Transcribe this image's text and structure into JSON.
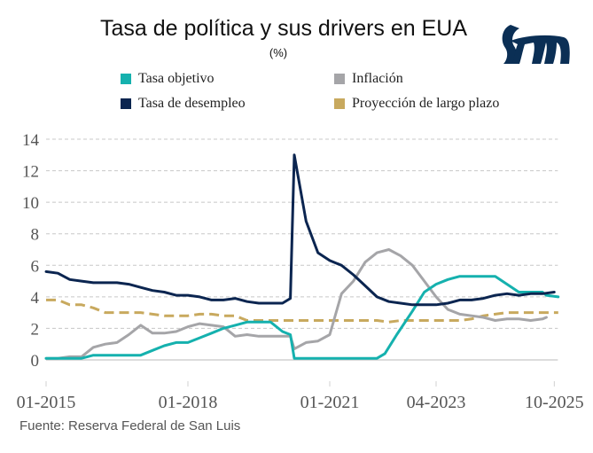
{
  "header": {
    "title": "Tasa de política y sus drivers en EUA",
    "subtitle": "(%)",
    "logo": "institution-logo"
  },
  "source": "Fuente: Reserva Federal de San Luis",
  "colors": {
    "tasa_objetivo": "#15b1ae",
    "tasa_desempleo": "#0b2550",
    "inflacion": "#a5a5a8",
    "proyeccion": "#c8a95e",
    "grid": "#c8c8c8",
    "axis": "#d0d0d0",
    "tick_text": "#555555",
    "logo": "#0b2f55"
  },
  "chart_data": {
    "type": "line",
    "title": "Tasa de política y sus drivers en EUA",
    "subtitle": "(%)",
    "xlabel": "",
    "ylabel": "",
    "ylim": [
      0,
      14
    ],
    "yticks": [
      0,
      2,
      4,
      6,
      8,
      10,
      12,
      14
    ],
    "grid": true,
    "legend_position": "top",
    "x_range_months": [
      0,
      129
    ],
    "x_note": "x values are months since 01-2015",
    "xticks": [
      {
        "label": "01-2015",
        "month": 0
      },
      {
        "label": "01-2018",
        "month": 36
      },
      {
        "label": "01-2021",
        "month": 72
      },
      {
        "label": "04-2023",
        "month": 99
      },
      {
        "label": "10-2025",
        "month": 129
      }
    ],
    "series": [
      {
        "key": "tasa_objetivo",
        "name": "Tasa objetivo",
        "style": "solid",
        "points": [
          [
            0,
            0.1
          ],
          [
            3,
            0.1
          ],
          [
            6,
            0.1
          ],
          [
            9,
            0.1
          ],
          [
            12,
            0.3
          ],
          [
            15,
            0.3
          ],
          [
            18,
            0.3
          ],
          [
            21,
            0.3
          ],
          [
            24,
            0.3
          ],
          [
            27,
            0.6
          ],
          [
            30,
            0.9
          ],
          [
            33,
            1.1
          ],
          [
            36,
            1.1
          ],
          [
            39,
            1.4
          ],
          [
            42,
            1.7
          ],
          [
            45,
            2.0
          ],
          [
            48,
            2.2
          ],
          [
            51,
            2.4
          ],
          [
            54,
            2.4
          ],
          [
            57,
            2.4
          ],
          [
            60,
            1.8
          ],
          [
            62,
            1.6
          ],
          [
            63,
            0.1
          ],
          [
            66,
            0.1
          ],
          [
            69,
            0.1
          ],
          [
            72,
            0.1
          ],
          [
            75,
            0.1
          ],
          [
            78,
            0.1
          ],
          [
            81,
            0.1
          ],
          [
            84,
            0.1
          ],
          [
            86,
            0.4
          ],
          [
            89,
            1.6
          ],
          [
            93,
            3.1
          ],
          [
            96,
            4.3
          ],
          [
            99,
            4.8
          ],
          [
            102,
            5.1
          ],
          [
            105,
            5.3
          ],
          [
            108,
            5.3
          ],
          [
            111,
            5.3
          ],
          [
            114,
            5.3
          ],
          [
            117,
            4.8
          ],
          [
            120,
            4.3
          ],
          [
            123,
            4.3
          ],
          [
            126,
            4.3
          ],
          [
            127,
            4.1
          ],
          [
            130,
            4.0
          ]
        ]
      },
      {
        "key": "tasa_desempleo",
        "name": "Tasa de desempleo",
        "style": "solid",
        "points": [
          [
            0,
            5.6
          ],
          [
            3,
            5.5
          ],
          [
            6,
            5.1
          ],
          [
            9,
            5.0
          ],
          [
            12,
            4.9
          ],
          [
            15,
            4.9
          ],
          [
            18,
            4.9
          ],
          [
            21,
            4.8
          ],
          [
            24,
            4.6
          ],
          [
            27,
            4.4
          ],
          [
            30,
            4.3
          ],
          [
            33,
            4.1
          ],
          [
            36,
            4.1
          ],
          [
            39,
            4.0
          ],
          [
            42,
            3.8
          ],
          [
            45,
            3.8
          ],
          [
            48,
            3.9
          ],
          [
            51,
            3.7
          ],
          [
            54,
            3.6
          ],
          [
            57,
            3.6
          ],
          [
            60,
            3.6
          ],
          [
            62,
            3.9
          ],
          [
            63,
            13.0
          ],
          [
            66,
            8.8
          ],
          [
            69,
            6.8
          ],
          [
            72,
            6.3
          ],
          [
            75,
            6.0
          ],
          [
            78,
            5.4
          ],
          [
            81,
            4.7
          ],
          [
            84,
            4.0
          ],
          [
            87,
            3.7
          ],
          [
            90,
            3.6
          ],
          [
            93,
            3.5
          ],
          [
            96,
            3.5
          ],
          [
            99,
            3.5
          ],
          [
            102,
            3.6
          ],
          [
            105,
            3.8
          ],
          [
            108,
            3.8
          ],
          [
            111,
            3.9
          ],
          [
            114,
            4.1
          ],
          [
            117,
            4.2
          ],
          [
            120,
            4.1
          ],
          [
            123,
            4.2
          ],
          [
            126,
            4.2
          ],
          [
            129,
            4.3
          ]
        ]
      },
      {
        "key": "inflacion",
        "name": "Inflación",
        "style": "solid",
        "points": [
          [
            0,
            0.1
          ],
          [
            3,
            0.1
          ],
          [
            6,
            0.2
          ],
          [
            9,
            0.2
          ],
          [
            12,
            0.8
          ],
          [
            15,
            1.0
          ],
          [
            18,
            1.1
          ],
          [
            21,
            1.6
          ],
          [
            24,
            2.2
          ],
          [
            27,
            1.7
          ],
          [
            30,
            1.7
          ],
          [
            33,
            1.8
          ],
          [
            36,
            2.1
          ],
          [
            39,
            2.3
          ],
          [
            42,
            2.2
          ],
          [
            45,
            2.1
          ],
          [
            48,
            1.5
          ],
          [
            51,
            1.6
          ],
          [
            54,
            1.5
          ],
          [
            57,
            1.5
          ],
          [
            60,
            1.5
          ],
          [
            62,
            1.5
          ],
          [
            63,
            0.7
          ],
          [
            66,
            1.1
          ],
          [
            69,
            1.2
          ],
          [
            72,
            1.6
          ],
          [
            75,
            4.2
          ],
          [
            78,
            5.0
          ],
          [
            81,
            6.2
          ],
          [
            84,
            6.8
          ],
          [
            87,
            7.0
          ],
          [
            90,
            6.6
          ],
          [
            93,
            6.0
          ],
          [
            96,
            5.0
          ],
          [
            99,
            4.0
          ],
          [
            102,
            3.2
          ],
          [
            105,
            2.9
          ],
          [
            108,
            2.8
          ],
          [
            111,
            2.7
          ],
          [
            114,
            2.5
          ],
          [
            117,
            2.6
          ],
          [
            120,
            2.6
          ],
          [
            123,
            2.5
          ],
          [
            126,
            2.6
          ],
          [
            127,
            2.7
          ]
        ]
      },
      {
        "key": "proyeccion",
        "name": "Proyección de largo plazo",
        "style": "dashed",
        "points": [
          [
            0,
            3.8
          ],
          [
            3,
            3.8
          ],
          [
            6,
            3.5
          ],
          [
            9,
            3.5
          ],
          [
            12,
            3.3
          ],
          [
            15,
            3.0
          ],
          [
            18,
            3.0
          ],
          [
            21,
            3.0
          ],
          [
            24,
            3.0
          ],
          [
            27,
            2.9
          ],
          [
            30,
            2.8
          ],
          [
            33,
            2.8
          ],
          [
            36,
            2.8
          ],
          [
            39,
            2.9
          ],
          [
            42,
            2.9
          ],
          [
            45,
            2.8
          ],
          [
            48,
            2.8
          ],
          [
            51,
            2.5
          ],
          [
            54,
            2.5
          ],
          [
            57,
            2.5
          ],
          [
            60,
            2.5
          ],
          [
            63,
            2.5
          ],
          [
            66,
            2.5
          ],
          [
            69,
            2.5
          ],
          [
            72,
            2.5
          ],
          [
            75,
            2.5
          ],
          [
            78,
            2.5
          ],
          [
            81,
            2.5
          ],
          [
            84,
            2.5
          ],
          [
            87,
            2.4
          ],
          [
            90,
            2.5
          ],
          [
            93,
            2.5
          ],
          [
            96,
            2.5
          ],
          [
            99,
            2.5
          ],
          [
            102,
            2.5
          ],
          [
            105,
            2.5
          ],
          [
            108,
            2.6
          ],
          [
            111,
            2.8
          ],
          [
            114,
            2.9
          ],
          [
            117,
            3.0
          ],
          [
            120,
            3.0
          ],
          [
            123,
            3.0
          ],
          [
            126,
            3.0
          ],
          [
            129,
            3.0
          ],
          [
            130,
            3.0
          ]
        ]
      }
    ]
  }
}
